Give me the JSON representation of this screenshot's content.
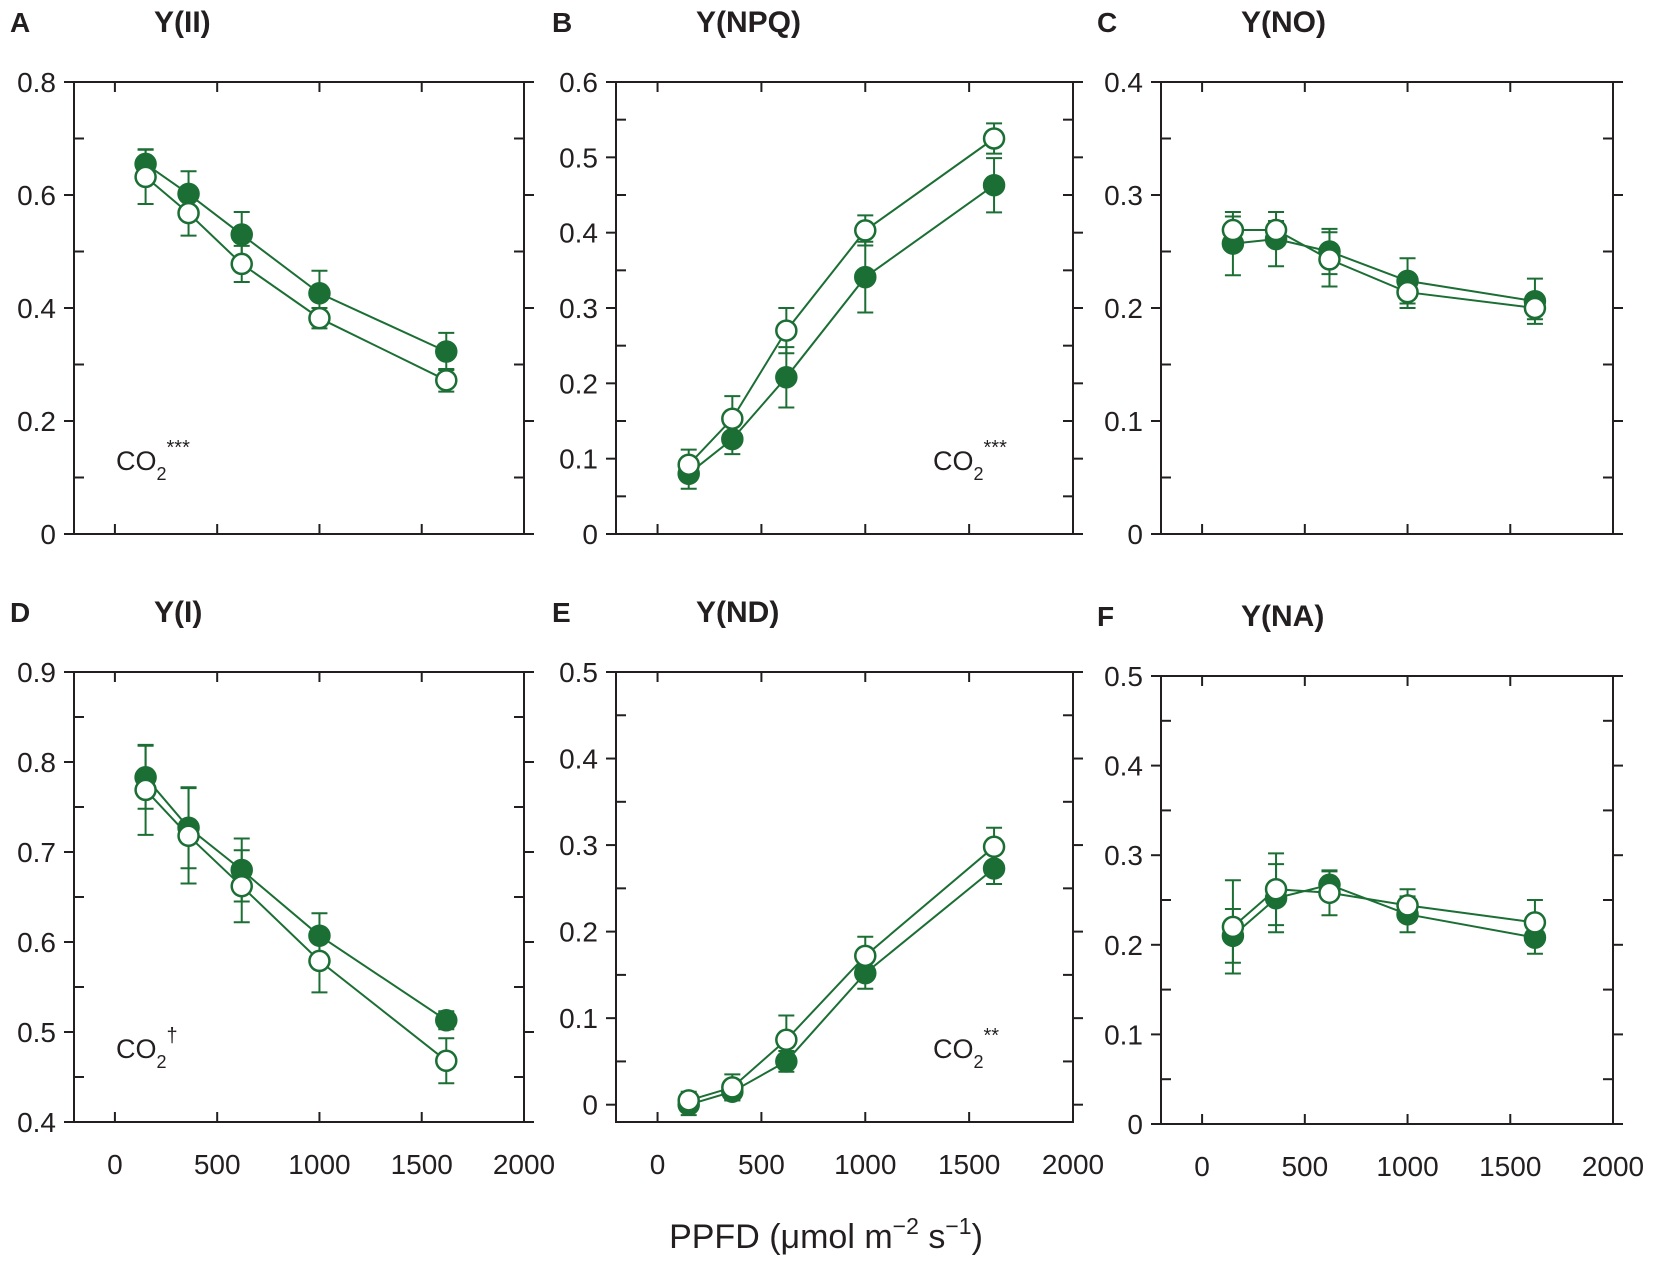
{
  "figure": {
    "x_axis_label": {
      "text": "PPFD (μmol m",
      "sup1": "−2",
      "mid": " s",
      "sup2": "−1",
      "end": ")"
    },
    "colors": {
      "series": "#1b6e34",
      "axis": "#231f20",
      "open_fill": "#ffffff"
    }
  },
  "chart_data": [
    {
      "type": "line",
      "letter": "A",
      "title": "Y(II)",
      "x": [
        150,
        360,
        620,
        1000,
        1620
      ],
      "xlim": [
        -200,
        2000
      ],
      "xticks": [
        0,
        500,
        1000,
        1500,
        2000
      ],
      "ylim": [
        0,
        0.8
      ],
      "yticks": [
        0,
        0.2,
        0.4,
        0.6,
        0.8
      ],
      "ytick_labels": [
        "0",
        "0.2",
        "0.4",
        "0.6",
        "0.8"
      ],
      "annotation": {
        "base": "CO",
        "sub": "2",
        "sup": "***",
        "position": "bottom-left"
      },
      "series": [
        {
          "name": "filled",
          "values": [
            0.655,
            0.602,
            0.53,
            0.426,
            0.323
          ],
          "err": [
            0.026,
            0.04,
            0.04,
            0.04,
            0.033
          ]
        },
        {
          "name": "open",
          "values": [
            0.632,
            0.568,
            0.478,
            0.382,
            0.272
          ],
          "err": [
            0.048,
            0.04,
            0.032,
            0.018,
            0.02
          ]
        }
      ]
    },
    {
      "type": "line",
      "letter": "B",
      "title": "Y(NPQ)",
      "x": [
        150,
        360,
        620,
        1000,
        1620
      ],
      "xlim": [
        -200,
        2000
      ],
      "xticks": [
        0,
        500,
        1000,
        1500,
        2000
      ],
      "ylim": [
        0,
        0.6
      ],
      "yticks": [
        0,
        0.1,
        0.2,
        0.3,
        0.4,
        0.5,
        0.6
      ],
      "ytick_labels": [
        "0",
        "0.1",
        "0.2",
        "0.3",
        "0.4",
        "0.5",
        "0.6"
      ],
      "annotation": {
        "base": "CO",
        "sub": "2",
        "sup": "***",
        "position": "bottom-right"
      },
      "series": [
        {
          "name": "filled",
          "values": [
            0.08,
            0.126,
            0.208,
            0.341,
            0.463
          ],
          "err": [
            0.02,
            0.02,
            0.04,
            0.047,
            0.036
          ]
        },
        {
          "name": "open",
          "values": [
            0.092,
            0.153,
            0.27,
            0.403,
            0.525
          ],
          "err": [
            0.02,
            0.03,
            0.03,
            0.02,
            0.02
          ]
        }
      ]
    },
    {
      "type": "line",
      "letter": "C",
      "title": "Y(NO)",
      "x": [
        150,
        360,
        620,
        1000,
        1620
      ],
      "xlim": [
        -200,
        2000
      ],
      "xticks": [
        0,
        500,
        1000,
        1500,
        2000
      ],
      "ylim": [
        0,
        0.4
      ],
      "yticks": [
        0,
        0.1,
        0.2,
        0.3,
        0.4
      ],
      "ytick_labels": [
        "0",
        "0.1",
        "0.2",
        "0.3",
        "0.4"
      ],
      "annotation": null,
      "series": [
        {
          "name": "filled",
          "values": [
            0.257,
            0.261,
            0.25,
            0.224,
            0.206
          ],
          "err": [
            0.028,
            0.024,
            0.02,
            0.02,
            0.02
          ]
        },
        {
          "name": "open",
          "values": [
            0.269,
            0.269,
            0.243,
            0.214,
            0.2
          ],
          "err": [
            0.012,
            0.008,
            0.024,
            0.014,
            0.01
          ]
        }
      ]
    },
    {
      "type": "line",
      "letter": "D",
      "title": "Y(I)",
      "x": [
        150,
        360,
        620,
        1000,
        1620
      ],
      "xlim": [
        -200,
        2000
      ],
      "xticks": [
        0,
        500,
        1000,
        1500,
        2000
      ],
      "xtick_labels": [
        "0",
        "500",
        "1000",
        "1500",
        "2000"
      ],
      "ylim": [
        0.4,
        0.9
      ],
      "yticks": [
        0.4,
        0.5,
        0.6,
        0.7,
        0.8,
        0.9
      ],
      "ytick_labels": [
        "0.4",
        "0.5",
        "0.6",
        "0.7",
        "0.8",
        "0.9"
      ],
      "annotation": {
        "base": "CO",
        "sub": "2",
        "sup": "†",
        "position": "bottom-left"
      },
      "series": [
        {
          "name": "filled",
          "values": [
            0.783,
            0.727,
            0.68,
            0.607,
            0.513
          ],
          "err": [
            0.035,
            0.045,
            0.035,
            0.025,
            0.01
          ]
        },
        {
          "name": "open",
          "values": [
            0.769,
            0.718,
            0.662,
            0.579,
            0.468
          ],
          "err": [
            0.05,
            0.053,
            0.04,
            0.035,
            0.025
          ]
        }
      ]
    },
    {
      "type": "line",
      "letter": "E",
      "title": "Y(ND)",
      "x": [
        150,
        360,
        620,
        1000,
        1620
      ],
      "xlim": [
        -200,
        2000
      ],
      "xticks": [
        0,
        500,
        1000,
        1500,
        2000
      ],
      "xtick_labels": [
        "0",
        "500",
        "1000",
        "1500",
        "2000"
      ],
      "ylim": [
        -0.02,
        0.5
      ],
      "yticks": [
        0,
        0.1,
        0.2,
        0.3,
        0.4,
        0.5
      ],
      "ytick_labels": [
        "0",
        "0.1",
        "0.2",
        "0.3",
        "0.4",
        "0.5"
      ],
      "annotation": {
        "base": "CO",
        "sub": "2",
        "sup": "**",
        "position": "bottom-right"
      },
      "series": [
        {
          "name": "filled",
          "values": [
            0.0,
            0.015,
            0.05,
            0.152,
            0.273
          ],
          "err": [
            0.012,
            0.01,
            0.012,
            0.018,
            0.018
          ]
        },
        {
          "name": "open",
          "values": [
            0.005,
            0.02,
            0.075,
            0.172,
            0.298
          ],
          "err": [
            0.01,
            0.015,
            0.028,
            0.022,
            0.022
          ]
        }
      ]
    },
    {
      "type": "line",
      "letter": "F",
      "title": "Y(NA)",
      "x": [
        150,
        360,
        620,
        1000,
        1620
      ],
      "xlim": [
        -200,
        2000
      ],
      "xticks": [
        0,
        500,
        1000,
        1500,
        2000
      ],
      "xtick_labels": [
        "0",
        "500",
        "1000",
        "1500",
        "2000"
      ],
      "ylim": [
        0,
        0.5
      ],
      "yticks": [
        0,
        0.1,
        0.2,
        0.3,
        0.4,
        0.5
      ],
      "ytick_labels": [
        "0",
        "0.1",
        "0.2",
        "0.3",
        "0.4",
        "0.5"
      ],
      "annotation": null,
      "series": [
        {
          "name": "filled",
          "values": [
            0.21,
            0.252,
            0.267,
            0.234,
            0.208
          ],
          "err": [
            0.03,
            0.038,
            0.015,
            0.02,
            0.018
          ]
        },
        {
          "name": "open",
          "values": [
            0.22,
            0.262,
            0.258,
            0.244,
            0.225
          ],
          "err": [
            0.052,
            0.04,
            0.025,
            0.018,
            0.025
          ]
        }
      ]
    }
  ]
}
